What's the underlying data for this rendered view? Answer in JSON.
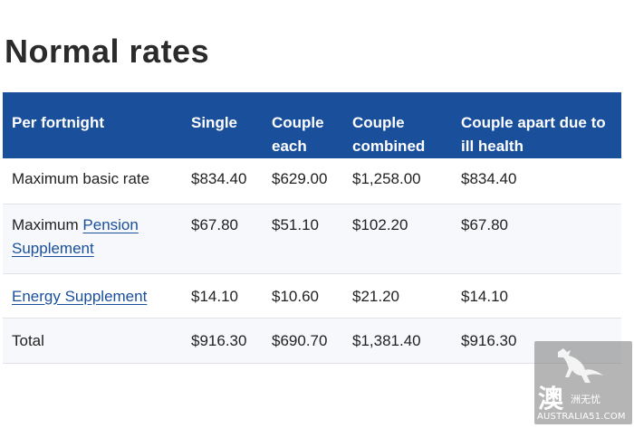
{
  "heading": "Normal rates",
  "table": {
    "headers": [
      "Per fortnight",
      "Single",
      "Couple each",
      "Couple combined",
      "Couple apart due to ill health"
    ],
    "rows": {
      "basic": {
        "label": "Maximum basic rate",
        "values": [
          "$834.40",
          "$629.00",
          "$1,258.00",
          "$834.40"
        ]
      },
      "pension": {
        "label_prefix": "Maximum ",
        "label_link": "Pension Supplement",
        "values": [
          "$67.80",
          "$51.10",
          "$102.20",
          "$67.80"
        ]
      },
      "energy": {
        "label_link": "Energy Supplement",
        "values": [
          "$14.10",
          "$10.60",
          "$21.20",
          "$14.10"
        ]
      },
      "total": {
        "label": "Total",
        "values": [
          "$916.30",
          "$690.70",
          "$1,381.40",
          "$916.30"
        ]
      }
    }
  },
  "watermark": {
    "char": "澳",
    "small": "洲无忧",
    "url": "AUSTRALIA51.COM",
    "icon": "kangaroo-icon"
  },
  "colors": {
    "header_bg": "#1a4f9c",
    "link": "#1a4f9c"
  }
}
